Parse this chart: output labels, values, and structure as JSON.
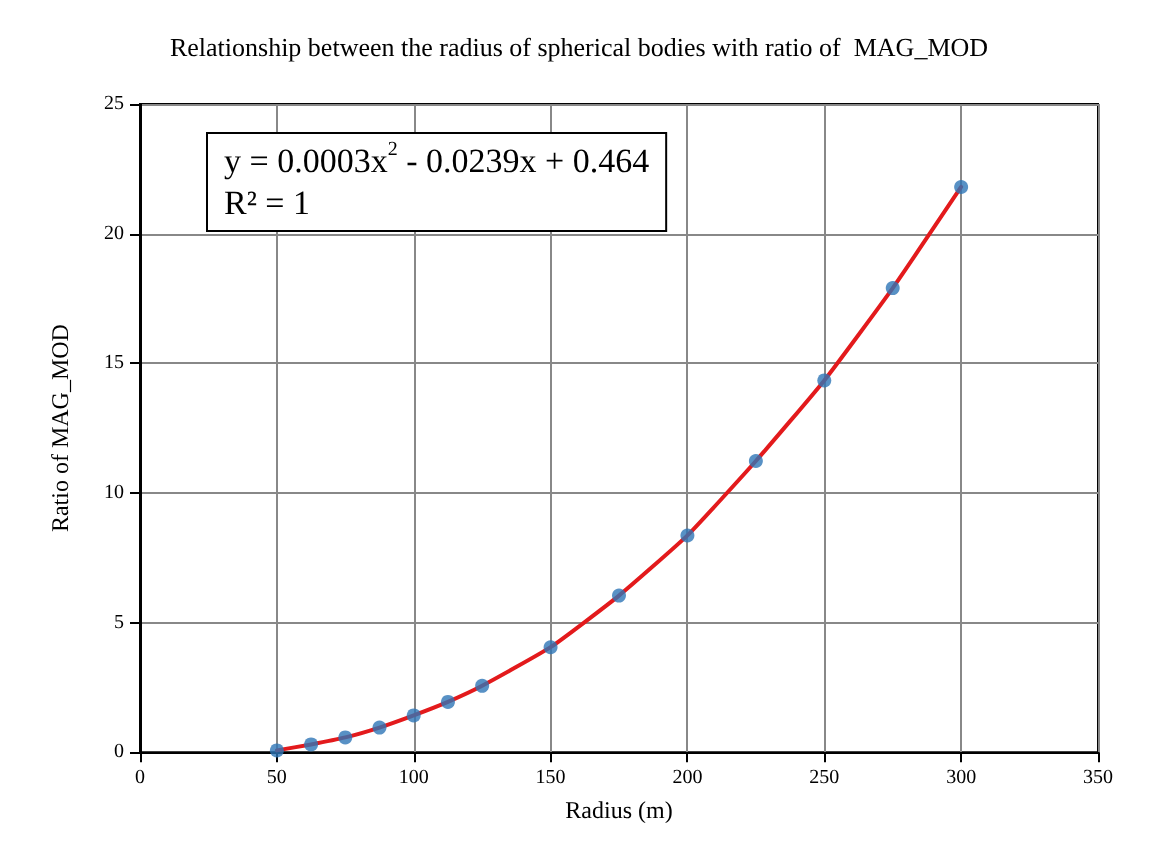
{
  "chart_data": {
    "type": "scatter",
    "title": "Relationship between the radius of spherical bodies with ratio of  MAG_MOD",
    "xlabel": "Radius (m)",
    "ylabel": "Ratio of MAG_MOD",
    "x": [
      50,
      62.5,
      75,
      87.5,
      100,
      112.5,
      125,
      150,
      175,
      200,
      225,
      250,
      275,
      300
    ],
    "series": [
      {
        "color": "#2e75b6",
        "marker": "circle",
        "values": [
          0.07,
          0.3,
          0.57,
          0.95,
          1.42,
          1.94,
          2.56,
          4.05,
          6.04,
          8.36,
          11.23,
          14.34,
          17.9,
          21.8
        ]
      },
      {
        "type": "line",
        "color": "#e31a1c",
        "marker": "none",
        "line_style": "solid",
        "values": [
          0.07,
          0.3,
          0.57,
          0.95,
          1.42,
          1.94,
          2.56,
          4.05,
          6.04,
          8.36,
          11.23,
          14.34,
          17.9,
          21.8
        ]
      }
    ],
    "xlim": [
      0,
      350
    ],
    "xticks": [
      0,
      50,
      100,
      150,
      200,
      250,
      300,
      350
    ],
    "ylim": [
      0,
      25
    ],
    "yticks": [
      0,
      5,
      10,
      15,
      20,
      25
    ],
    "grid": true,
    "annotations": [
      "y = 0.0003x$^{2}$ - 0.0239x + 0.464",
      "R² = 1"
    ]
  }
}
